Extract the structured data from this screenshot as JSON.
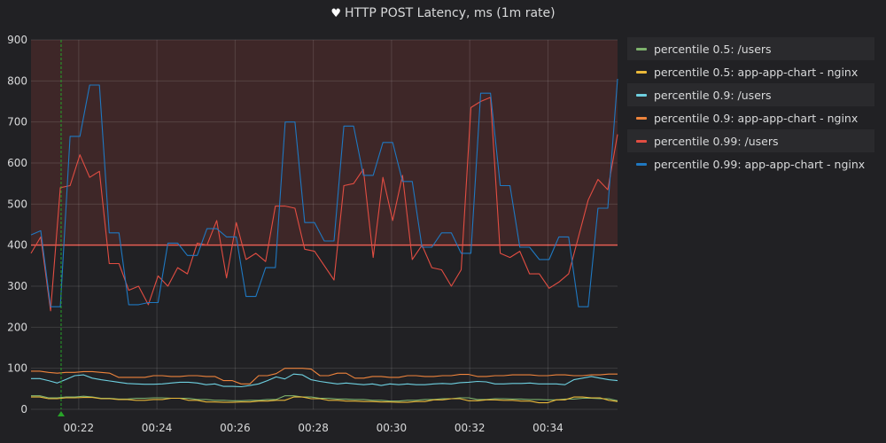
{
  "panel": {
    "title": "HTTP POST Latency, ms (1m rate)",
    "title_icon": "heart-icon"
  },
  "legend": {
    "items": [
      {
        "label": "percentile 0.5: /users",
        "color": "#7eb26d"
      },
      {
        "label": "percentile 0.5: app-app-chart - nginx",
        "color": "#eab839"
      },
      {
        "label": "percentile 0.9: /users",
        "color": "#6ed0e0"
      },
      {
        "label": "percentile 0.9: app-app-chart - nginx",
        "color": "#ef843c"
      },
      {
        "label": "percentile 0.99: /users",
        "color": "#e24d42"
      },
      {
        "label": "percentile 0.99: app-app-chart - nginx",
        "color": "#1f78c1"
      }
    ]
  },
  "chart_data": {
    "type": "line",
    "title": "HTTP POST Latency, ms (1m rate)",
    "x_ticks": [
      "00:22",
      "00:24",
      "00:26",
      "00:28",
      "00:30",
      "00:32",
      "00:34"
    ],
    "x_tick_minutes": [
      22,
      24,
      26,
      28,
      30,
      32,
      34
    ],
    "xlim_minutes": [
      20.78,
      35.78
    ],
    "ylim": [
      0,
      900
    ],
    "y_ticks": [
      0,
      100,
      200,
      300,
      400,
      500,
      600,
      700,
      800,
      900
    ],
    "threshold": {
      "value": 400,
      "color": "#e24d42",
      "fill": "above"
    },
    "annotation": {
      "x_minutes": 21.55,
      "color": "#28a428"
    },
    "grid": true,
    "legend_position": "right",
    "series": [
      {
        "name": "percentile 0.5: /users",
        "color": "#7eb26d",
        "values": [
          33,
          33,
          28,
          28,
          30,
          30,
          32,
          30,
          27,
          27,
          25,
          25,
          27,
          27,
          28,
          28,
          27,
          27,
          27,
          24,
          24,
          22,
          22,
          21,
          21,
          22,
          22,
          24,
          24,
          33,
          33,
          30,
          30,
          27,
          27,
          25,
          25,
          24,
          24,
          22,
          22,
          20,
          20,
          22,
          22,
          24,
          24,
          26,
          26,
          28,
          28,
          24,
          24,
          26,
          26,
          25,
          25,
          24,
          24,
          23,
          23,
          25,
          25,
          27,
          27,
          26,
          26,
          21
        ]
      },
      {
        "name": "percentile 0.5: app-app-chart - nginx",
        "color": "#eab839",
        "values": [
          30,
          30,
          26,
          26,
          28,
          28,
          29,
          29,
          26,
          26,
          24,
          24,
          22,
          22,
          24,
          24,
          27,
          27,
          22,
          22,
          18,
          18,
          17,
          17,
          18,
          18,
          20,
          20,
          22,
          22,
          30,
          30,
          26,
          26,
          22,
          22,
          20,
          20,
          19,
          19,
          18,
          18,
          17,
          17,
          19,
          19,
          23,
          23,
          26,
          26,
          21,
          21,
          23,
          23,
          22,
          22,
          20,
          20,
          16,
          16,
          23,
          23,
          30,
          30,
          28,
          28,
          22,
          19
        ]
      },
      {
        "name": "percentile 0.9: /users",
        "color": "#6ed0e0",
        "values": [
          75,
          75,
          70,
          64,
          73,
          82,
          84,
          76,
          72,
          69,
          66,
          63,
          62,
          61,
          61,
          62,
          64,
          66,
          66,
          64,
          60,
          62,
          56,
          56,
          55,
          58,
          62,
          70,
          79,
          74,
          86,
          84,
          72,
          68,
          65,
          62,
          64,
          62,
          60,
          62,
          58,
          62,
          60,
          62,
          60,
          60,
          62,
          63,
          62,
          65,
          66,
          68,
          67,
          62,
          62,
          63,
          63,
          64,
          62,
          62,
          62,
          60,
          72,
          76,
          80,
          76,
          72,
          70
        ]
      },
      {
        "name": "percentile 0.9: app-app-chart - nginx",
        "color": "#ef843c",
        "values": [
          93,
          93,
          90,
          88,
          90,
          90,
          92,
          92,
          90,
          88,
          78,
          78,
          78,
          78,
          82,
          82,
          80,
          80,
          82,
          82,
          80,
          80,
          70,
          70,
          62,
          62,
          82,
          82,
          87,
          100,
          100,
          100,
          98,
          82,
          82,
          88,
          88,
          76,
          76,
          80,
          80,
          78,
          78,
          82,
          82,
          80,
          80,
          82,
          82,
          85,
          85,
          80,
          80,
          82,
          82,
          84,
          84,
          84,
          82,
          82,
          84,
          84,
          82,
          82,
          84,
          84,
          86,
          86
        ]
      },
      {
        "name": "percentile 0.99: /users",
        "color": "#e24d42",
        "values": [
          380,
          420,
          240,
          540,
          545,
          620,
          565,
          580,
          355,
          355,
          290,
          300,
          255,
          325,
          300,
          345,
          330,
          405,
          400,
          460,
          320,
          455,
          365,
          380,
          360,
          495,
          495,
          490,
          390,
          385,
          350,
          315,
          545,
          550,
          585,
          370,
          565,
          460,
          570,
          365,
          400,
          345,
          340,
          300,
          340,
          735,
          750,
          760,
          380,
          370,
          385,
          330,
          330,
          295,
          310,
          330,
          420,
          510,
          560,
          535,
          670
        ]
      },
      {
        "name": "percentile 0.99: app-app-chart - nginx",
        "color": "#1f78c1",
        "values": [
          425,
          435,
          250,
          250,
          665,
          665,
          790,
          790,
          430,
          430,
          255,
          255,
          260,
          260,
          405,
          405,
          375,
          375,
          440,
          440,
          420,
          420,
          275,
          275,
          345,
          345,
          700,
          700,
          455,
          455,
          410,
          410,
          690,
          690,
          570,
          570,
          650,
          650,
          555,
          555,
          395,
          395,
          430,
          430,
          380,
          380,
          770,
          770,
          545,
          545,
          395,
          395,
          365,
          365,
          420,
          420,
          250,
          250,
          490,
          490,
          805
        ]
      }
    ]
  }
}
